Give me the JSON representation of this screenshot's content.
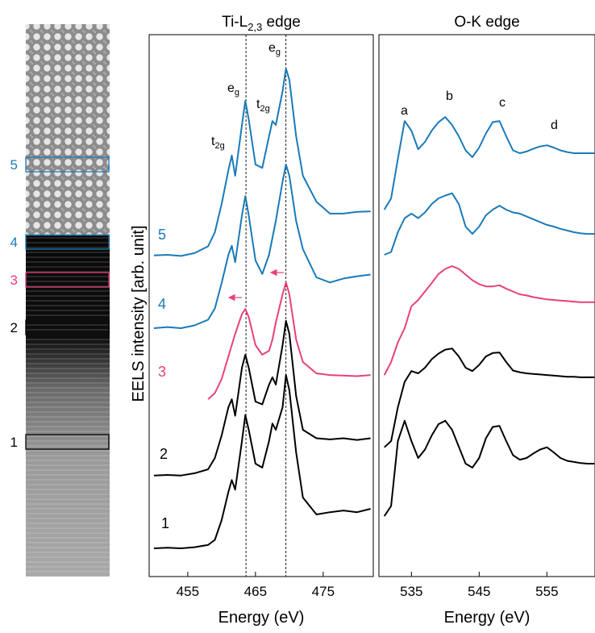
{
  "image_labels": [
    {
      "text": "5",
      "color": "#1a7ab8"
    },
    {
      "text": "4",
      "color": "#1a7ab8"
    },
    {
      "text": "3",
      "color": "#e8407a"
    },
    {
      "text": "2",
      "color": "#000000"
    },
    {
      "text": "1",
      "color": "#000000"
    }
  ],
  "chart_data": [
    {
      "type": "line",
      "title": "Ti-L",
      "title_subscript": "2,3",
      "title_suffix": " edge",
      "xlabel": "Energy (eV)",
      "ylabel": "EELS intensity [arb. unit]",
      "xlim": [
        449.3,
        482.4
      ],
      "ylim": [
        0,
        96
      ],
      "xticks": [
        455,
        465,
        475
      ],
      "vlines": [
        463.6,
        469.5
      ],
      "annotations": [
        {
          "text": "t",
          "sub": "2g"
        },
        {
          "text": "e",
          "sub": "g"
        },
        {
          "text": "t",
          "sub": "2g"
        },
        {
          "text": "e",
          "sub": "g"
        }
      ],
      "x": [
        450,
        452,
        454,
        456,
        458,
        459,
        460,
        461,
        461.5,
        462,
        463,
        463.5,
        464,
        465,
        466,
        467,
        467.5,
        468,
        469,
        469.5,
        470,
        471,
        472,
        474,
        476,
        478,
        480,
        482
      ],
      "series": [
        {
          "name": "5",
          "color": "#1a7ab8",
          "values": [
            56.9,
            57,
            56.8,
            57.3,
            58.5,
            61,
            66,
            72,
            74.6,
            71,
            80,
            84.3,
            81,
            73,
            72.4,
            78,
            80.7,
            80,
            86,
            90,
            88,
            78,
            71,
            66.4,
            64.3,
            64.3,
            64.6,
            64.7
          ]
        },
        {
          "name": "4",
          "color": "#1a7ab8",
          "values": [
            44,
            44.2,
            44,
            44.5,
            45.5,
            47.5,
            52,
            57,
            58.6,
            55.7,
            64,
            67.4,
            64,
            56,
            53.6,
            57,
            60,
            63,
            70,
            73,
            71,
            63,
            58,
            53,
            52.1,
            52.8,
            53.2,
            53.5
          ]
        },
        {
          "name": "3",
          "color": "#e8407a",
          "values": [
            null,
            null,
            null,
            null,
            31.4,
            32.5,
            35,
            39,
            41,
            43,
            46.5,
            47.4,
            46,
            41,
            39.3,
            40,
            42,
            45,
            50,
            52.1,
            50,
            42,
            38,
            36,
            35.7,
            35.6,
            35.5,
            35.7
          ]
        },
        {
          "name": "2",
          "color": "#000000",
          "values": [
            17.9,
            18,
            17.9,
            18.3,
            19,
            21,
            25,
            30,
            31.4,
            28.5,
            37,
            39.3,
            37,
            31,
            30.5,
            34,
            35.3,
            34,
            41,
            45.3,
            43,
            32,
            26,
            24.5,
            24.3,
            24.5,
            24.2,
            24.5
          ]
        },
        {
          "name": "1",
          "color": "#000000",
          "values": [
            5,
            5.1,
            5,
            5.2,
            5.6,
            6.5,
            10,
            15,
            17.1,
            15.4,
            24,
            28.6,
            26,
            20,
            19.3,
            24,
            27.1,
            26,
            30,
            35.7,
            33,
            22,
            14,
            11,
            11.4,
            11.7,
            11.4,
            12
          ]
        }
      ]
    },
    {
      "type": "line",
      "title": "O-K edge",
      "xlabel": "Energy (eV)",
      "xlim": [
        530.2,
        562.1
      ],
      "ylim": [
        0,
        96
      ],
      "xticks": [
        535,
        545,
        555
      ],
      "annotations": [
        {
          "text": "a"
        },
        {
          "text": "b"
        },
        {
          "text": "c"
        },
        {
          "text": "d"
        }
      ],
      "x": [
        531,
        532,
        533,
        534,
        535,
        536,
        537,
        538,
        539,
        540,
        541,
        542,
        543,
        544,
        545,
        546,
        547,
        548,
        549,
        550,
        551,
        552,
        553,
        554,
        555,
        556,
        557,
        558,
        559,
        560,
        561,
        562
      ],
      "series": [
        {
          "color": "#1a7ab8",
          "values": [
            65,
            67,
            74,
            80.7,
            79,
            75.7,
            77,
            79,
            80.5,
            81.4,
            80,
            78,
            75.5,
            74.3,
            76,
            78.5,
            80.5,
            80.7,
            78,
            75.5,
            75,
            75.3,
            75.8,
            76.2,
            76.4,
            76,
            75.5,
            75.2,
            75,
            75,
            75,
            75
          ]
        },
        {
          "color": "#1a7ab8",
          "values": [
            57,
            57.5,
            61,
            63.5,
            64.3,
            63.5,
            64.5,
            66,
            67,
            67.5,
            67.9,
            66,
            62,
            60.7,
            62,
            64,
            65,
            65.7,
            65,
            64.5,
            64.3,
            63.8,
            63.3,
            62.8,
            62.3,
            62,
            61.6,
            61.3,
            61,
            60.8,
            60.7,
            60.7
          ]
        },
        {
          "color": "#e8407a",
          "values": [
            35.7,
            38,
            41.5,
            44,
            47.9,
            49,
            50.5,
            52,
            53.6,
            54.5,
            55,
            54.5,
            53.5,
            52.5,
            51.8,
            51.4,
            51.4,
            51.6,
            51,
            50.5,
            50,
            49.8,
            49.5,
            49.3,
            49.1,
            49,
            48.9,
            48.8,
            48.7,
            48.6,
            48.6,
            48.6
          ]
        },
        {
          "color": "#000000",
          "values": [
            22.9,
            24,
            30,
            34.5,
            36.4,
            36,
            37,
            38.5,
            39.5,
            40.2,
            40.4,
            39,
            37,
            36.4,
            37.5,
            39,
            39.6,
            39.7,
            38,
            36.5,
            36.2,
            36,
            35.9,
            35.8,
            35.7,
            35.6,
            35.5,
            35.4,
            35.4,
            35.3,
            35.3,
            35.3
          ]
        },
        {
          "color": "#000000",
          "values": [
            10.7,
            12.5,
            24,
            27.6,
            24,
            21,
            22.5,
            25,
            27,
            27.6,
            26,
            23,
            20,
            19.3,
            21,
            24.5,
            26.5,
            26.7,
            24,
            21.5,
            20.7,
            21,
            21.8,
            22.5,
            22.9,
            22,
            21,
            20.5,
            20.3,
            20.1,
            20,
            20
          ]
        }
      ]
    }
  ]
}
